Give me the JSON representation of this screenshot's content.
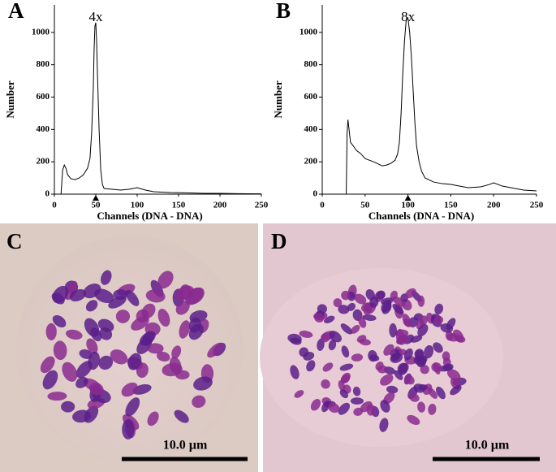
{
  "chart_data": [
    {
      "type": "line",
      "panel": "A",
      "annotation": "4x",
      "marker_at": 50,
      "color": "#000000",
      "xlabel": "Channels (DNA - DNA)",
      "ylabel": "Number",
      "x": [
        8,
        10,
        12,
        14,
        16,
        20,
        25,
        30,
        35,
        40,
        43,
        45,
        47,
        48,
        49,
        50,
        51,
        52,
        54,
        56,
        58,
        60,
        70,
        80,
        90,
        100,
        110,
        120,
        140,
        160,
        180,
        200,
        220,
        250
      ],
      "values": [
        0,
        150,
        180,
        160,
        120,
        95,
        90,
        100,
        120,
        160,
        220,
        380,
        650,
        900,
        1040,
        1060,
        950,
        750,
        400,
        150,
        60,
        35,
        30,
        25,
        30,
        40,
        25,
        15,
        10,
        8,
        5,
        5,
        3,
        2
      ],
      "xlim": [
        0,
        250
      ],
      "ylim": [
        0,
        1170
      ],
      "xticks": [
        0,
        50,
        100,
        150,
        200,
        250
      ],
      "yticks": [
        0,
        200,
        400,
        600,
        800,
        1000
      ]
    },
    {
      "type": "line",
      "panel": "B",
      "annotation": "8x",
      "marker_at": 100,
      "color": "#000000",
      "xlabel": "Channels (DNA - DNA)",
      "ylabel": "Number",
      "x": [
        28,
        29,
        30,
        33,
        36,
        40,
        45,
        50,
        60,
        70,
        75,
        80,
        85,
        88,
        90,
        92,
        94,
        96,
        98,
        100,
        102,
        104,
        106,
        108,
        110,
        113,
        116,
        120,
        130,
        140,
        150,
        170,
        185,
        195,
        200,
        210,
        220,
        235,
        250
      ],
      "values": [
        0,
        380,
        460,
        320,
        300,
        270,
        250,
        220,
        200,
        175,
        180,
        190,
        210,
        250,
        320,
        500,
        750,
        950,
        1080,
        1090,
        1000,
        850,
        650,
        450,
        300,
        200,
        140,
        100,
        75,
        65,
        60,
        40,
        45,
        60,
        70,
        50,
        40,
        25,
        20
      ],
      "xlim": [
        0,
        250
      ],
      "ylim": [
        0,
        1170
      ],
      "xticks": [
        0,
        50,
        100,
        150,
        200,
        250
      ],
      "yticks": [
        0,
        200,
        400,
        600,
        800,
        1000
      ]
    }
  ],
  "images": [
    {
      "panel": "C",
      "scale_bar": "10.0 µm"
    },
    {
      "panel": "D",
      "scale_bar": "10.0 µm"
    }
  ]
}
